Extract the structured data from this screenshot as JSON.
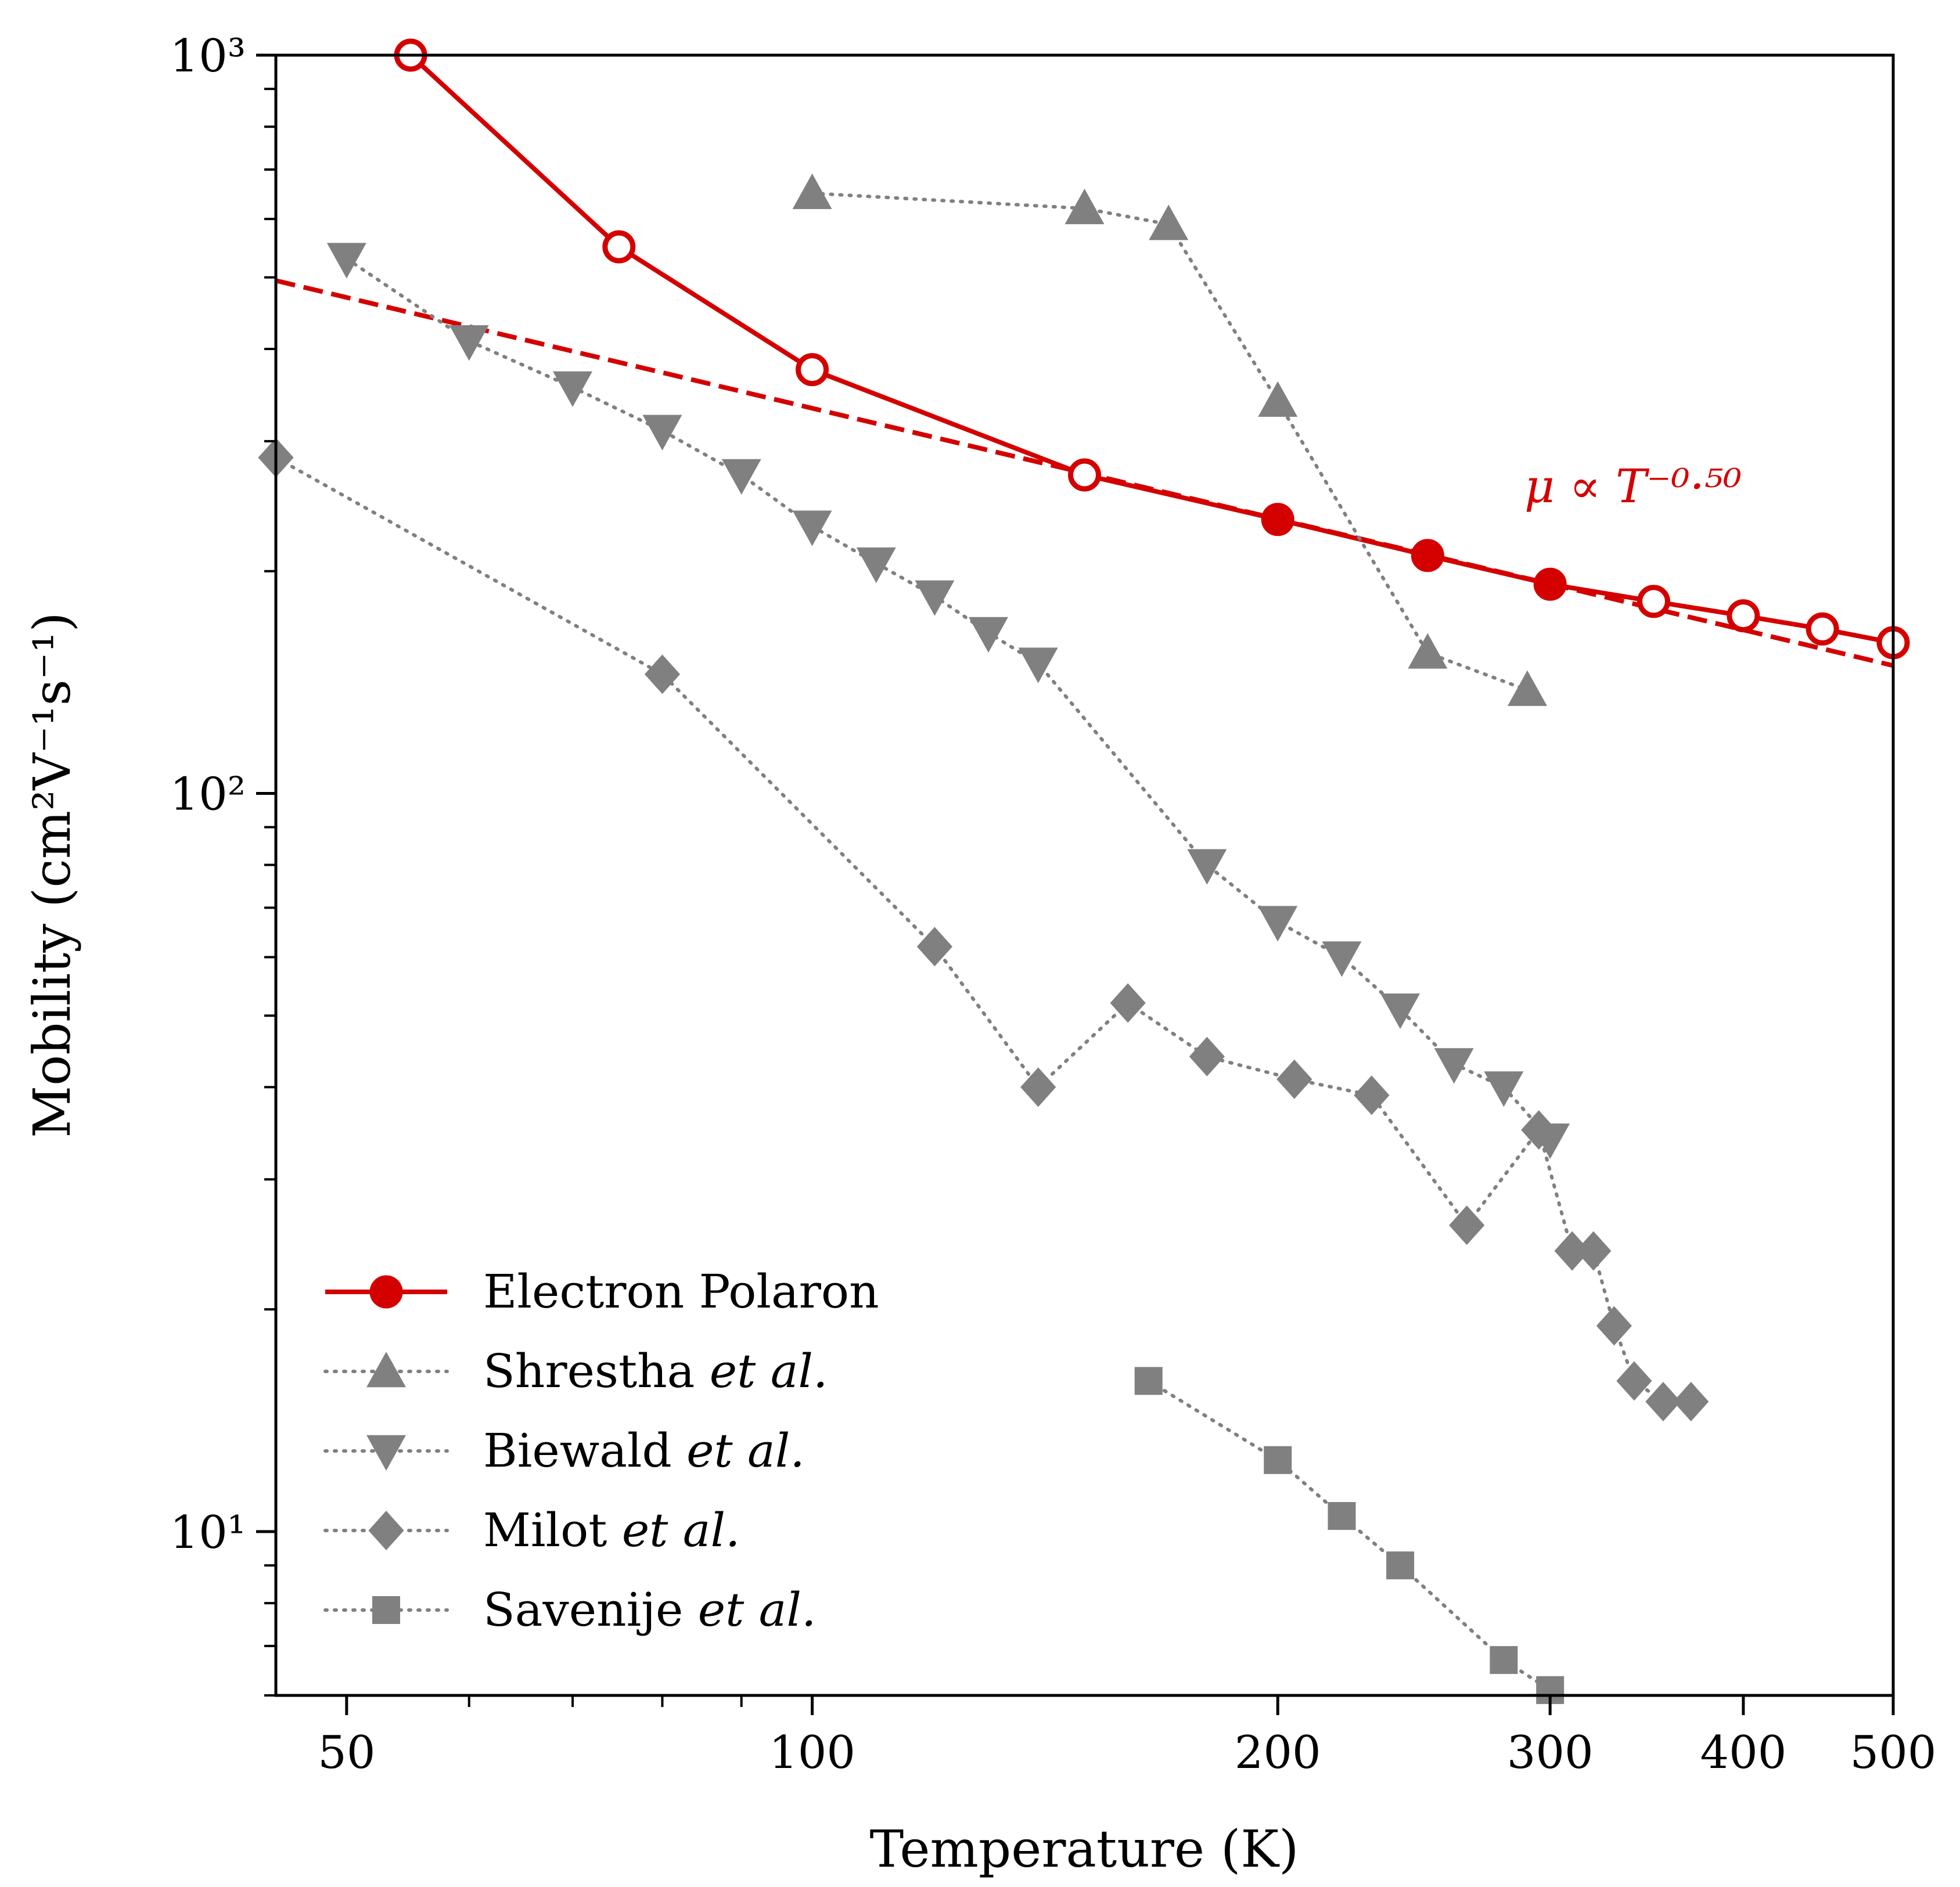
{
  "chart_data": {
    "type": "line",
    "xlabel": "Temperature (K)",
    "ylabel": "Mobility (cm²V⁻¹s⁻¹)",
    "x_scale": "log",
    "y_scale": "log",
    "xlim": [
      45,
      500
    ],
    "ylim": [
      6,
      1000
    ],
    "x_ticks": [
      50,
      100,
      200,
      300,
      400,
      500
    ],
    "x_tick_labels": [
      "50",
      "100",
      "200",
      "300",
      "400",
      "500"
    ],
    "y_ticks": [
      10,
      100,
      1000
    ],
    "y_tick_labels": [
      "10¹",
      "10²",
      "10³"
    ],
    "grid": false,
    "legend_position": "bottom-left",
    "annotation": {
      "text": "μ ∝ T⁻⁰·⁵⁰",
      "color": "#d40000"
    },
    "series": [
      {
        "name": "Electron Polaron",
        "color": "#d40000",
        "style": "solid",
        "marker": "circle",
        "x": [
          55,
          75,
          100,
          150,
          200,
          250,
          300,
          350,
          400,
          450,
          500
        ],
        "y": [
          1000,
          550,
          375,
          270,
          235,
          210,
          192,
          182,
          174,
          167,
          160
        ],
        "filled": [
          false,
          false,
          false,
          false,
          true,
          true,
          true,
          false,
          false,
          false,
          false
        ]
      },
      {
        "name": "",
        "color": "#d40000",
        "style": "dashed",
        "marker": "none",
        "x": [
          45,
          500
        ],
        "y": [
          495,
          149
        ]
      },
      {
        "name": "Shrestha et al.",
        "color": "#808080",
        "style": "dotted",
        "marker": "triangle-up",
        "x": [
          100,
          150,
          170,
          200,
          250,
          290
        ],
        "y": [
          650,
          620,
          590,
          340,
          155,
          138
        ]
      },
      {
        "name": "Biewald et al.",
        "color": "#808080",
        "style": "dotted",
        "marker": "triangle-down",
        "x": [
          50,
          60,
          70,
          80,
          90,
          100,
          110,
          120,
          130,
          140,
          180,
          200,
          220,
          240,
          260,
          280,
          300
        ],
        "y": [
          530,
          410,
          355,
          310,
          270,
          230,
          205,
          185,
          165,
          150,
          80,
          67,
          60,
          51,
          43,
          40,
          34
        ]
      },
      {
        "name": "Milot et al.",
        "color": "#808080",
        "style": "dotted",
        "marker": "diamond",
        "x": [
          45,
          80,
          120,
          140,
          160,
          180,
          205,
          230,
          265,
          295,
          310,
          320,
          330,
          340,
          355,
          370
        ],
        "y": [
          285,
          145,
          62,
          40,
          52,
          44,
          41,
          39,
          26,
          35,
          24,
          24,
          19,
          16,
          15,
          15
        ]
      },
      {
        "name": "Savenije et al.",
        "color": "#808080",
        "style": "dotted",
        "marker": "square",
        "x": [
          165,
          200,
          220,
          240,
          280,
          300
        ],
        "y": [
          16,
          12.5,
          10.5,
          9,
          6.7,
          6.1
        ]
      }
    ]
  }
}
